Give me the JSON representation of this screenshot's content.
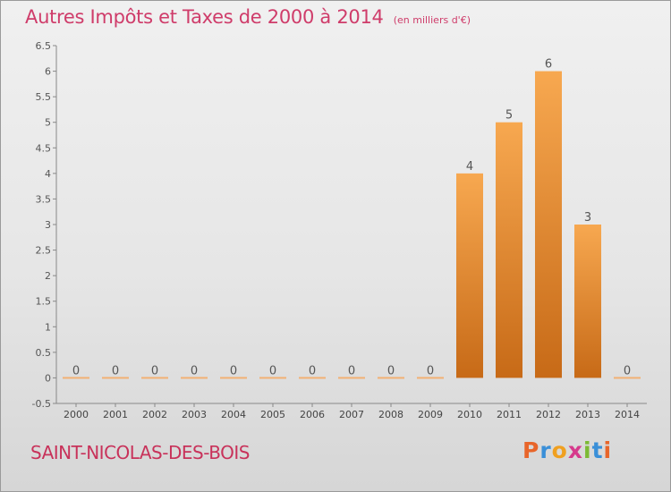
{
  "header": {
    "title": "Autres Impôts et Taxes de 2000 à 2014",
    "subtitle": "(en milliers d'€)"
  },
  "footer": {
    "commune": "SAINT-NICOLAS-DES-BOIS",
    "brand_letters": [
      "P",
      "r",
      "o",
      "x",
      "i",
      "t",
      "i"
    ],
    "brand_colors": [
      "#e8652a",
      "#3a8fd8",
      "#f0a020",
      "#d63a8c",
      "#7cba34",
      "#3a8fd8",
      "#e8652a"
    ]
  },
  "colors": {
    "bar_top": "#f7a850",
    "bar_bottom": "#c76a17",
    "zero_bar": "#f2b074",
    "title": "#cf3c6a"
  },
  "chart_data": {
    "type": "bar",
    "categories": [
      "2000",
      "2001",
      "2002",
      "2003",
      "2004",
      "2005",
      "2006",
      "2007",
      "2008",
      "2009",
      "2010",
      "2011",
      "2012",
      "2013",
      "2014"
    ],
    "values": [
      0,
      0,
      0,
      0,
      0,
      0,
      0,
      0,
      0,
      0,
      4,
      5,
      6,
      3,
      0
    ],
    "data_labels": [
      "0",
      "0",
      "0",
      "0",
      "0",
      "0",
      "0",
      "0",
      "0",
      "0",
      "4",
      "5",
      "6",
      "3",
      "0"
    ],
    "y_ticks": [
      "-0.5",
      "0",
      "0.5",
      "1",
      "1.5",
      "2",
      "2.5",
      "3",
      "3.5",
      "4",
      "4.5",
      "5",
      "5.5",
      "6",
      "6.5"
    ],
    "ylim": [
      -0.5,
      6.5
    ],
    "grid": false
  }
}
